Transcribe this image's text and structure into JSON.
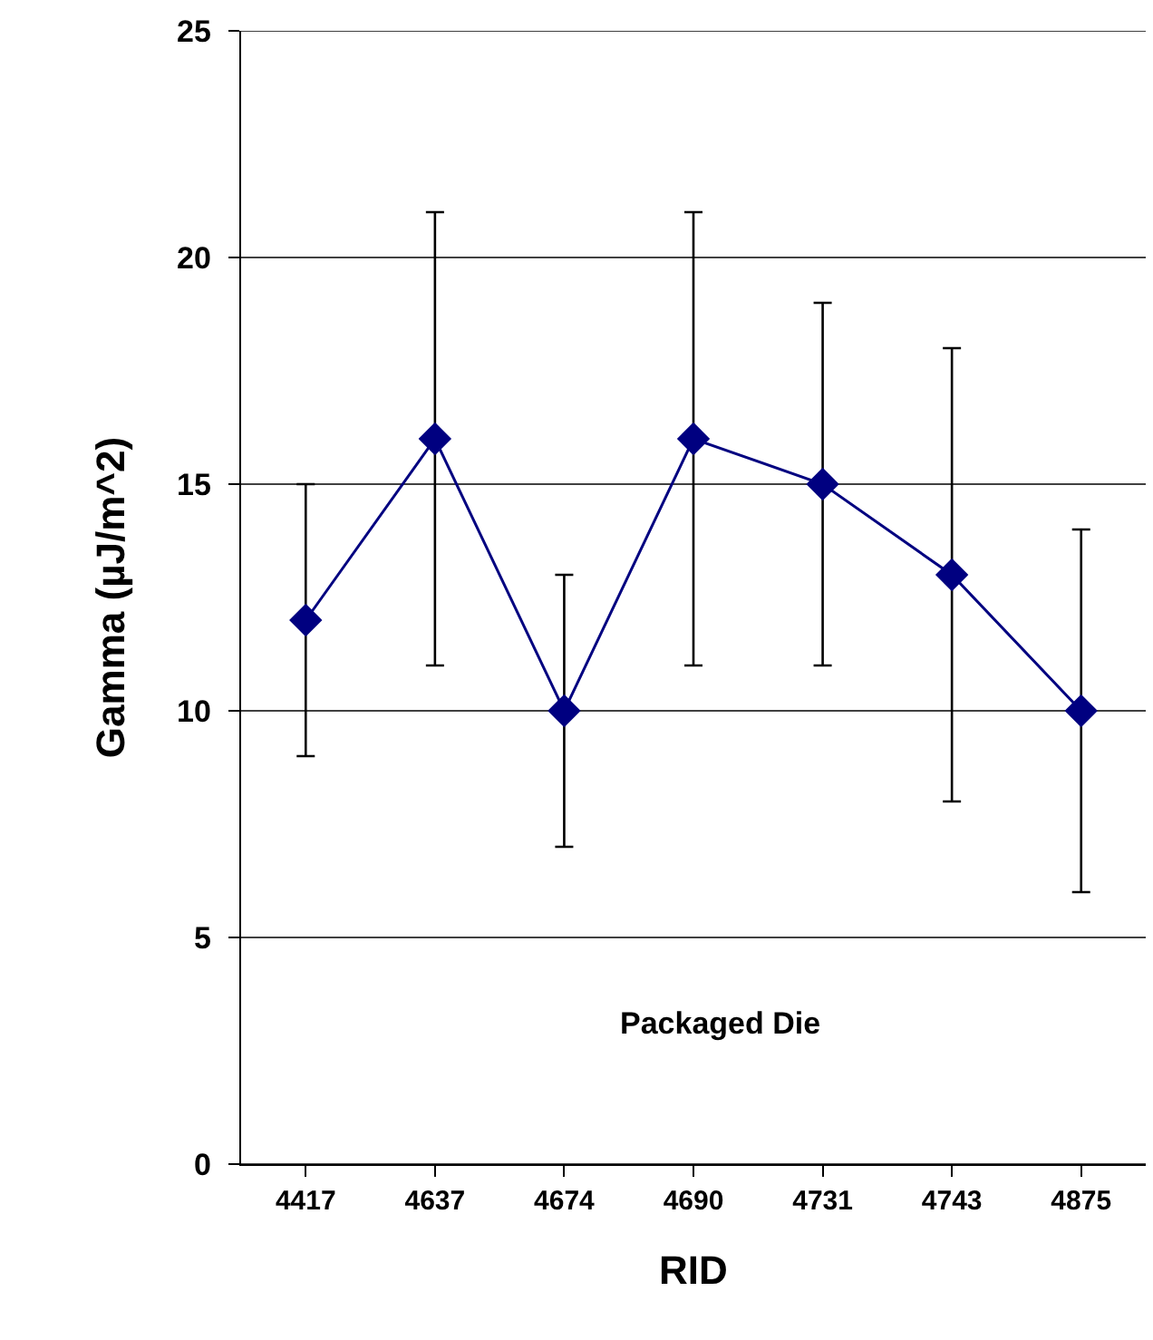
{
  "chart_data": {
    "type": "line",
    "xlabel": "RID",
    "ylabel": "Gamma (µJ/m^2)",
    "categories": [
      "4417",
      "4637",
      "4674",
      "4690",
      "4731",
      "4743",
      "4875"
    ],
    "series": [
      {
        "color": "#000080",
        "values": [
          12,
          16,
          10,
          16,
          15,
          13,
          10
        ],
        "errors": [
          3,
          5,
          3,
          5,
          4,
          5,
          4
        ]
      }
    ],
    "ylim": [
      0,
      25
    ],
    "yticks": [
      0,
      5,
      10,
      15,
      20,
      25
    ],
    "grid": "y",
    "marker": "diamond",
    "line_style": "solid",
    "annotations": [
      "Packaged Die"
    ]
  }
}
